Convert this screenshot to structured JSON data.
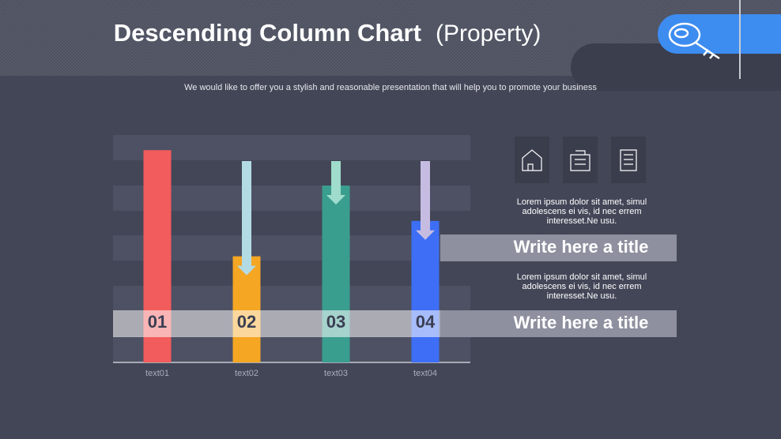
{
  "chart_data": {
    "type": "bar",
    "title": "Descending Column Chart",
    "title_note": "(Property)",
    "subtitle": "We would like to offer you a stylish and reasonable presentation that will help you to promote your business",
    "categories": [
      "text01",
      "text02",
      "text03",
      "text04"
    ],
    "values": [
      8.4,
      4.2,
      7,
      5.6
    ],
    "bar_labels": [
      "01",
      "02",
      "03",
      "04"
    ],
    "colors": [
      "#f25c5c",
      "#f5a623",
      "#3a9e8f",
      "#3d6ef5"
    ],
    "ylim": [
      0,
      9
    ]
  },
  "side_panel": {
    "blocks": [
      {
        "text": [
          "Lorem ipsum dolor sit amet, simul",
          "adolescens ei vis, id nec errem",
          "interesset.Ne usu."
        ],
        "title": "Write here a title"
      },
      {
        "text": [
          "Lorem ipsum dolor sit amet, simul",
          "adolescens ei vis, id nec errem",
          "interesset.Ne usu."
        ],
        "title": "Write here a title"
      }
    ]
  }
}
